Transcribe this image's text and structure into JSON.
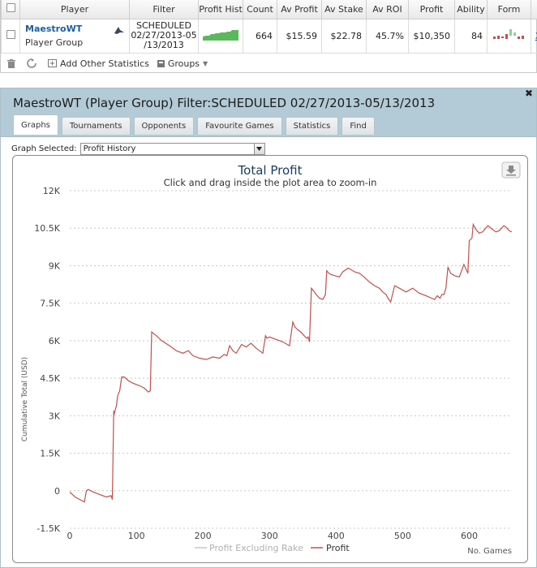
{
  "table": {
    "headers": [
      "",
      "Player",
      "Filter",
      "Profit Hist",
      "Count",
      "Av Profit",
      "Av Stake",
      "Av ROI",
      "Profit",
      "Ability",
      "Form",
      ""
    ],
    "row": {
      "player_name": "MaestroWT",
      "player_group": "Player Group",
      "filter_line1": "SCHEDULED",
      "filter_line2": "02/27/2013-05",
      "filter_line3": "/13/2013",
      "count": "664",
      "av_profit": "$15.59",
      "av_stake": "$22.78",
      "av_roi": "45.7%",
      "profit": "$10,350",
      "ability": "84",
      "remove_link": "X"
    }
  },
  "toolbar": {
    "add_stats_label": "Add Other Statistics",
    "groups_label": "Groups"
  },
  "window": {
    "title": "MaestroWT (Player Group) Filter:SCHEDULED 02/27/2013-05/13/2013",
    "tabs": [
      "Graphs",
      "Tournaments",
      "Opponents",
      "Favourite Games",
      "Statistics",
      "Find"
    ],
    "graph_selected_label": "Graph Selected:",
    "graph_selected_value": "Profit History"
  },
  "colors": {
    "profit_line": "#c0504d",
    "profit_excl_rake_line": "#c8c8c8",
    "sparkline": "#5cb85c",
    "form_red": "#c0504d",
    "form_green": "#8fd18f",
    "window_header": "#b3cbd6"
  },
  "chart_data": {
    "type": "line",
    "title": "Total Profit",
    "subtitle": "Click and drag inside the plot area to zoom-in",
    "xlabel": "No. Games",
    "ylabel": "Cumulative Total (USD)",
    "xlim": [
      0,
      664
    ],
    "ylim": [
      -1500,
      12000
    ],
    "x_ticks": [
      "0",
      "100",
      "200",
      "300",
      "400",
      "500",
      "600"
    ],
    "x_tick_values": [
      0,
      100,
      200,
      300,
      400,
      500,
      600
    ],
    "y_ticks": [
      "-1.5K",
      "0",
      "1.5K",
      "3K",
      "4.5K",
      "6K",
      "7.5K",
      "9K",
      "10.5K",
      "12K"
    ],
    "y_tick_values": [
      -1500,
      0,
      1500,
      3000,
      4500,
      6000,
      7500,
      9000,
      10500,
      12000
    ],
    "legend": [
      "Profit Excluding Rake",
      "Profit"
    ],
    "series": [
      {
        "name": "Profit",
        "x": [
          0,
          8,
          15,
          22,
          25,
          28,
          35,
          45,
          55,
          62,
          64,
          66,
          67,
          70,
          72,
          75,
          78,
          82,
          88,
          95,
          105,
          112,
          118,
          121,
          123,
          125,
          130,
          138,
          150,
          160,
          170,
          178,
          185,
          195,
          205,
          215,
          225,
          232,
          236,
          240,
          245,
          250,
          258,
          265,
          272,
          280,
          290,
          294,
          296,
          300,
          310,
          320,
          330,
          335,
          338,
          342,
          347,
          352,
          356,
          358,
          360,
          363,
          366,
          370,
          375,
          380,
          384,
          386,
          389,
          392,
          398,
          405,
          410,
          418,
          422,
          428,
          435,
          442,
          450,
          458,
          465,
          470,
          475,
          478,
          482,
          488,
          495,
          505,
          515,
          525,
          535,
          548,
          552,
          556,
          559,
          562,
          565,
          568,
          572,
          578,
          585,
          592,
          598,
          600,
          604,
          606,
          610,
          615,
          620,
          628,
          635,
          640,
          645,
          652,
          655,
          660,
          664
        ],
        "y": [
          -50,
          -250,
          -350,
          -450,
          0,
          50,
          -50,
          -150,
          -250,
          -200,
          -350,
          3200,
          3100,
          3400,
          3800,
          4000,
          4550,
          4550,
          4400,
          4300,
          4200,
          4100,
          3950,
          4000,
          6350,
          6300,
          6200,
          6000,
          5800,
          5600,
          5500,
          5600,
          5400,
          5300,
          5250,
          5350,
          5300,
          5450,
          5400,
          5800,
          5600,
          5500,
          5850,
          5750,
          5900,
          5700,
          5500,
          6200,
          6100,
          6150,
          6050,
          5950,
          5800,
          6750,
          6550,
          6450,
          6350,
          6200,
          6100,
          6150,
          5950,
          8100,
          8000,
          7850,
          7700,
          7650,
          7850,
          8800,
          8700,
          8650,
          8600,
          8550,
          8750,
          8900,
          8850,
          8750,
          8700,
          8550,
          8350,
          8200,
          8100,
          7950,
          7850,
          7700,
          7550,
          8200,
          8100,
          7950,
          8100,
          7900,
          7800,
          7650,
          7800,
          7700,
          7850,
          7850,
          8100,
          8950,
          8700,
          8600,
          8550,
          9050,
          8700,
          10000,
          10100,
          10650,
          10450,
          10300,
          10350,
          10600,
          10450,
          10350,
          10400,
          10600,
          10550,
          10400,
          10350
        ]
      }
    ]
  }
}
